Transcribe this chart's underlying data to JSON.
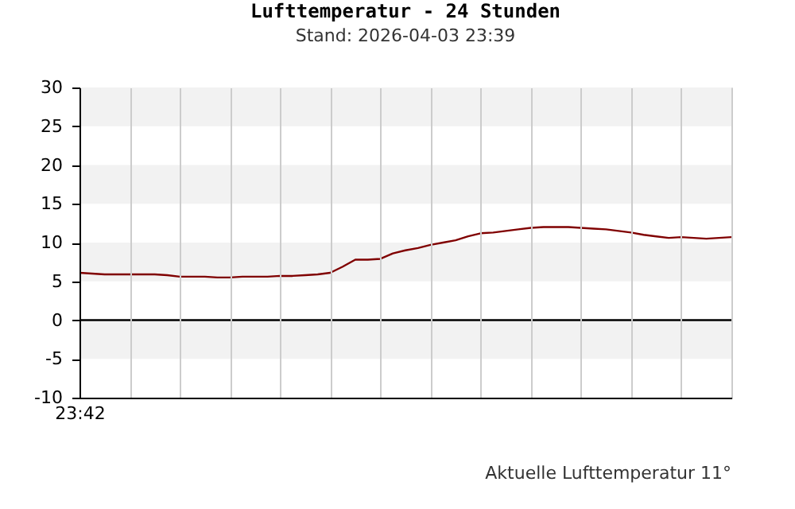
{
  "chart_data": {
    "type": "line",
    "title": "Lufttemperatur - 24 Stunden",
    "subtitle": "Stand: 2026-04-03 23:39",
    "categories": [
      "23:42",
      null,
      null,
      null,
      null,
      null,
      null,
      null,
      null,
      null,
      null,
      null,
      null,
      null,
      null,
      null,
      null,
      null,
      null,
      null,
      null,
      null,
      null,
      null,
      null,
      null,
      null,
      null,
      null,
      null,
      null,
      null,
      null,
      null,
      null,
      null,
      null,
      null,
      null,
      null,
      null,
      null,
      null,
      null,
      null,
      null,
      null,
      null,
      null,
      null,
      null,
      null,
      null
    ],
    "series": [
      {
        "color": "#800000",
        "values": [
          6.1,
          6.0,
          5.9,
          5.9,
          5.9,
          5.9,
          5.9,
          5.8,
          5.6,
          5.6,
          5.6,
          5.5,
          5.5,
          5.6,
          5.6,
          5.6,
          5.7,
          5.7,
          5.8,
          5.9,
          6.1,
          6.9,
          7.8,
          7.8,
          7.9,
          8.6,
          9.0,
          9.3,
          9.7,
          10.0,
          10.3,
          10.8,
          11.2,
          11.3,
          11.5,
          11.7,
          11.9,
          12.0,
          12.0,
          12.0,
          11.9,
          11.8,
          11.7,
          11.5,
          11.3,
          11.0,
          10.8,
          10.6,
          10.7,
          10.6,
          10.5,
          10.6,
          10.7
        ]
      }
    ],
    "ylim": [
      -10,
      30
    ],
    "yticks": [
      -10,
      -5,
      0,
      5,
      10,
      15,
      20,
      25,
      30
    ],
    "grid": "x",
    "marker": "none",
    "line_style": "solid",
    "bands": [
      {
        "axis": "y",
        "from": -5,
        "to": 0,
        "color": "#f2f2f2"
      },
      {
        "axis": "y",
        "from": 5,
        "to": 10,
        "color": "#f2f2f2"
      },
      {
        "axis": "y",
        "from": 15,
        "to": 20,
        "color": "#f2f2f2"
      },
      {
        "axis": "y",
        "from": 25,
        "to": 30,
        "color": "#f2f2f2"
      }
    ],
    "ref_lines": [
      {
        "axis": "y",
        "value": 0,
        "color": "#000000"
      }
    ],
    "annotations": [
      "Aktuelle Lufttemperatur 11°"
    ]
  }
}
